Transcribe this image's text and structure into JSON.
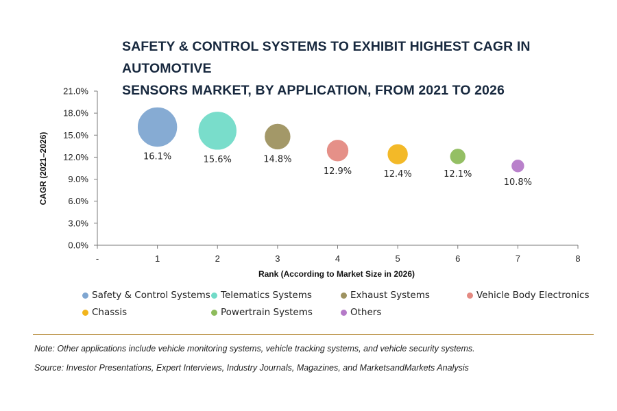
{
  "chart_data": {
    "type": "scatter",
    "title_lines": [
      "SAFETY & CONTROL SYSTEMS TO EXHIBIT HIGHEST CAGR IN AUTOMOTIVE",
      "SENSORS MARKET, BY APPLICATION, FROM 2021 TO 2026"
    ],
    "xlabel": "Rank (According to Market Size in 2026)",
    "ylabel": "CAGR (2021–2026)",
    "x_tick_labels": [
      "-",
      "1",
      "2",
      "3",
      "4",
      "5",
      "6",
      "7",
      "8"
    ],
    "xlim": [
      0,
      8
    ],
    "y_tick_labels": [
      "0.0%",
      "3.0%",
      "6.0%",
      "9.0%",
      "12.0%",
      "15.0%",
      "18.0%",
      "21.0%"
    ],
    "ylim": [
      0,
      21
    ],
    "grid": false,
    "legend_position": "bottom",
    "series": [
      {
        "name": "Safety & Control Systems",
        "x": 1,
        "y": 16.1,
        "label": "16.1%",
        "color": "#7fa6d1",
        "size_rank": 1
      },
      {
        "name": "Telematics Systems",
        "x": 2,
        "y": 15.6,
        "label": "15.6%",
        "color": "#72dbc8",
        "size_rank": 2
      },
      {
        "name": "Exhaust Systems",
        "x": 3,
        "y": 14.8,
        "label": "14.8%",
        "color": "#9e9260",
        "size_rank": 3
      },
      {
        "name": "Vehicle Body Electronics",
        "x": 4,
        "y": 12.9,
        "label": "12.9%",
        "color": "#e48a82",
        "size_rank": 4
      },
      {
        "name": "Chassis",
        "x": 5,
        "y": 12.4,
        "label": "12.4%",
        "color": "#f2b51c",
        "size_rank": 5
      },
      {
        "name": "Powertrain Systems",
        "x": 6,
        "y": 12.1,
        "label": "12.1%",
        "color": "#8ebc5c",
        "size_rank": 6
      },
      {
        "name": "Others",
        "x": 7,
        "y": 10.8,
        "label": "10.8%",
        "color": "#b57ac8",
        "size_rank": 7
      }
    ]
  },
  "note": "Note: Other applications include vehicle monitoring systems, vehicle tracking systems, and vehicle security systems.",
  "source": "Source: Investor Presentations, Expert Interviews, Industry Journals, Magazines, and MarketsandMarkets Analysis",
  "colors": {
    "rule": "#b78d3c",
    "title": "#17283e"
  }
}
